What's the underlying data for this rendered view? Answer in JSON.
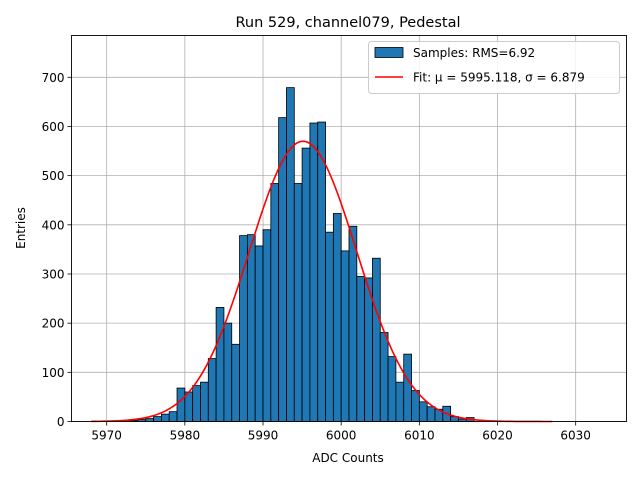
{
  "chart_data": {
    "type": "bar",
    "title": "Run 529, channel079, Pedestal",
    "xlabel": "ADC Counts",
    "ylabel": "Entries",
    "xlim": [
      5965.5,
      6036.5
    ],
    "ylim": [
      0,
      785
    ],
    "grid": true,
    "legend_position": "top-right",
    "x_ticks": [
      5970,
      5980,
      5990,
      6000,
      6010,
      6020,
      6030
    ],
    "y_ticks": [
      0,
      100,
      200,
      300,
      400,
      500,
      600,
      700
    ],
    "bin_width": 1,
    "bins": {
      "left_edges": [
        5972,
        5973,
        5974,
        5975,
        5976,
        5977,
        5978,
        5979,
        5980,
        5981,
        5982,
        5983,
        5984,
        5985,
        5986,
        5987,
        5988,
        5989,
        5990,
        5991,
        5992,
        5993,
        5994,
        5995,
        5996,
        5997,
        5998,
        5999,
        6000,
        6001,
        6002,
        6003,
        6004,
        6005,
        6006,
        6007,
        6008,
        6009,
        6010,
        6011,
        6012,
        6013,
        6014,
        6015,
        6016
      ],
      "counts": [
        1,
        2,
        4,
        6,
        10,
        15,
        20,
        68,
        60,
        73,
        80,
        128,
        232,
        200,
        157,
        378,
        380,
        357,
        390,
        484,
        618,
        679,
        484,
        556,
        607,
        609,
        385,
        423,
        347,
        397,
        295,
        292,
        332,
        181,
        132,
        80,
        137,
        63,
        40,
        30,
        25,
        31,
        10,
        5,
        8
      ]
    },
    "series": [
      {
        "name": "Samples: RMS=6.92",
        "type": "histogram",
        "color": "#1f77b4",
        "edgecolor": "#000000"
      },
      {
        "name": "Fit: μ = 5995.118, σ = 6.879",
        "type": "line",
        "color": "#ff0000",
        "function": "gaussian",
        "mu": 5995.118,
        "sigma": 6.879,
        "amplitude": 570,
        "x_range": [
          5968,
          6027
        ]
      }
    ]
  }
}
